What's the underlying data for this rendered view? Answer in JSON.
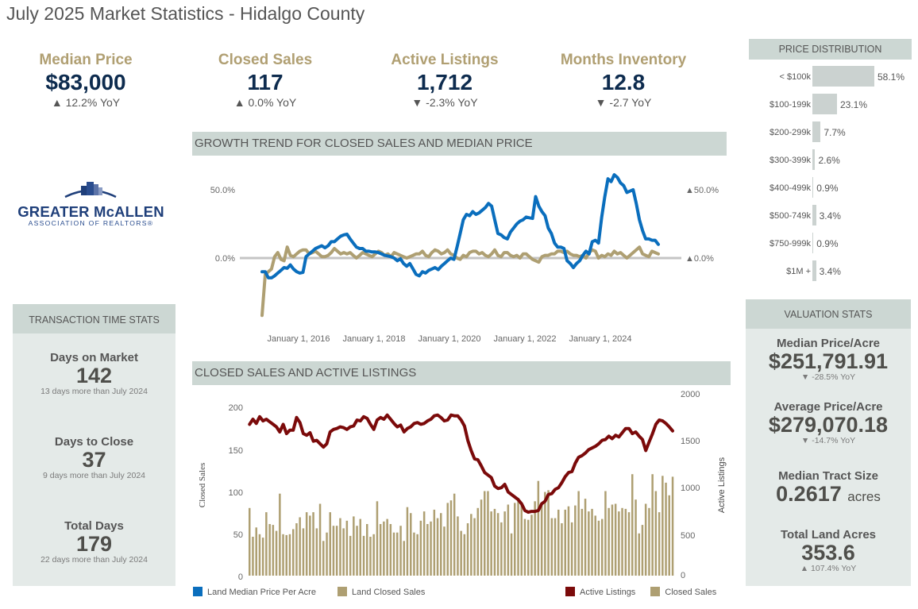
{
  "page": {
    "title": "July 2025 Market Statistics - Hidalgo County"
  },
  "kpis": [
    {
      "label": "Median Price",
      "value": "$83,000",
      "yoy": "▲ 12.2% YoY"
    },
    {
      "label": "Closed Sales",
      "value": "117",
      "yoy": "▲ 0.0% YoY"
    },
    {
      "label": "Active Listings",
      "value": "1,712",
      "yoy": "▼ -2.3% YoY"
    },
    {
      "label": "Months Inventory",
      "value": "12.8",
      "yoy": "▼ -2.7 YoY"
    }
  ],
  "logo": {
    "line1": "GREATER McALLEN",
    "line2": "ASSOCIATION OF REALTORS®"
  },
  "transaction_time": {
    "title": "TRANSACTION TIME STATS",
    "items": [
      {
        "label": "Days on Market",
        "value": "142",
        "note": "13 days more than July 2024"
      },
      {
        "label": "Days to Close",
        "value": "37",
        "note": "9 days more than July 2024"
      },
      {
        "label": "Total Days",
        "value": "179",
        "note": "22 days more than July 2024"
      }
    ]
  },
  "valuation": {
    "title": "VALUATION STATS",
    "median_price_acre": {
      "label": "Median Price/Acre",
      "value": "$251,791.91",
      "yoy": "▼ -28.5% YoY"
    },
    "average_price_acre": {
      "label": "Average Price/Acre",
      "value": "$279,070.18",
      "yoy": "▼ -14.7% YoY"
    },
    "median_tract": {
      "label": "Median Tract Size",
      "value": "0.2617",
      "unit": "acres"
    },
    "total_acres": {
      "label": "Total Land Acres",
      "value": "353.6",
      "yoy": "▲ 107.4% YoY"
    }
  },
  "colors": {
    "gold": "#b09f72",
    "navy": "#0d2b4e",
    "blue": "#0a6ebd",
    "tan": "#ae9f72",
    "maroon": "#7b0a0a",
    "header_bg": "#ccd7d3",
    "panel_bg": "#e4eae8",
    "bar_gray": "#cbd2d0"
  },
  "chart_data": [
    {
      "type": "bar",
      "title": "PRICE DISTRIBUTION",
      "orientation": "horizontal",
      "categories": [
        "< $100k",
        "$100-199k",
        "$200-299k",
        "$300-399k",
        "$400-499k",
        "$500-749k",
        "$750-999k",
        "$1M +"
      ],
      "values": [
        58.1,
        23.1,
        7.7,
        2.6,
        0.9,
        3.4,
        0.9,
        3.4
      ],
      "labels": [
        "58.1%",
        "23.1%",
        "7.7%",
        "2.6%",
        "0.9%",
        "3.4%",
        "0.9%",
        "3.4%"
      ],
      "unit": "%"
    },
    {
      "type": "line",
      "title": "GROWTH TREND FOR CLOSED SALES AND MEDIAN PRICE",
      "x_start": "2015-01",
      "x_step": "month",
      "x_ticks": [
        "January 1, 2016",
        "January 1, 2018",
        "January 1, 2020",
        "January 1, 2022",
        "January 1, 2024"
      ],
      "y_ticks_left": [
        "50.0%",
        "0.0%"
      ],
      "y_ticks_right": [
        "▲50.0%",
        "▲0.0%"
      ],
      "ylim": [
        -45,
        70
      ],
      "grid": false,
      "series": [
        {
          "name": "Land Median Price Per Acre",
          "color": "#0a6ebd",
          "values": [
            -10,
            -10,
            -14.5,
            -14.5,
            -13,
            -11,
            -9,
            -7,
            -7.5,
            -5,
            -8,
            -10,
            -11,
            -10.5,
            1,
            3,
            5,
            7,
            8,
            9,
            7.5,
            9,
            12,
            12,
            14,
            16,
            17,
            17.5,
            14,
            11,
            8,
            7,
            7,
            5,
            5,
            4.5,
            4.5,
            4,
            3,
            2,
            1.5,
            1,
            0,
            -2,
            -0.5,
            -4,
            -6,
            -4,
            -8,
            -12,
            -13,
            -10,
            -11,
            -9,
            -8,
            -7,
            -8.5,
            -6,
            -4,
            -2,
            0,
            -1,
            8,
            18,
            28,
            32,
            31,
            34,
            32,
            33,
            35,
            37,
            40,
            38,
            28,
            18,
            17,
            15,
            14,
            19,
            22,
            25,
            27,
            28,
            30,
            29.5,
            29,
            45,
            38,
            34,
            31,
            22,
            18,
            11,
            8,
            8,
            7,
            -2,
            -4,
            -7,
            -4,
            -2,
            2,
            5,
            3,
            12,
            13,
            11,
            30,
            45,
            58,
            56,
            61,
            59,
            55,
            53,
            48,
            49,
            50,
            40,
            28,
            20,
            14,
            14,
            13,
            13,
            10
          ]
        },
        {
          "name": "Land Closed Sales",
          "color": "#ae9f72",
          "values": [
            -42,
            -12,
            -10,
            -8,
            1,
            4,
            -1,
            -2,
            8,
            2,
            1,
            3,
            5,
            6,
            6,
            3,
            4,
            5,
            3,
            1,
            1,
            2,
            4,
            7,
            5,
            3,
            4,
            3,
            4,
            2,
            0,
            2,
            4,
            3,
            2,
            1,
            3,
            5,
            4,
            2,
            3,
            1,
            4,
            3,
            2,
            1,
            0,
            1,
            2,
            3,
            3,
            5,
            2,
            1,
            4,
            6,
            5,
            3,
            4,
            6,
            3,
            2,
            0,
            -1,
            2,
            1,
            4,
            5,
            5,
            3,
            4,
            2,
            1,
            3,
            6,
            2,
            1,
            4,
            4,
            2,
            1,
            2,
            0,
            3,
            3,
            1,
            -1,
            -2,
            -3,
            1,
            2,
            2,
            3,
            3,
            5,
            5,
            4,
            5,
            3,
            2,
            2,
            1,
            2,
            0,
            4,
            6,
            5,
            0,
            2,
            1,
            3,
            2,
            5,
            3,
            4,
            2,
            0,
            2,
            4,
            6,
            8,
            3,
            2,
            1,
            5,
            4,
            3
          ]
        }
      ]
    },
    {
      "type": "bar",
      "title": "CLOSED SALES AND ACTIVE LISTINGS",
      "ylabel": "Closed Sales",
      "ylabel_right": "Active Listings",
      "y_ticks_left": [
        "200",
        "150",
        "100",
        "50",
        "0"
      ],
      "y_ticks_right": [
        "2000",
        "1500",
        "1000",
        "500",
        "0"
      ],
      "ylim": [
        0,
        210
      ],
      "ylim_right": [
        0,
        2100
      ],
      "series": [
        {
          "name": "Closed Sales",
          "color": "#ae9f72",
          "axis": "left",
          "values": [
            80,
            46,
            57,
            49,
            45,
            75,
            61,
            60,
            53,
            97,
            49,
            48,
            49,
            55,
            62,
            69,
            56,
            75,
            71,
            75,
            56,
            85,
            41,
            51,
            75,
            59,
            59,
            68,
            56,
            65,
            47,
            70,
            59,
            67,
            47,
            61,
            46,
            49,
            88,
            61,
            64,
            67,
            61,
            51,
            51,
            59,
            41,
            81,
            74,
            51,
            49,
            65,
            76,
            61,
            64,
            78,
            68,
            74,
            58,
            86,
            89,
            97,
            70,
            53,
            49,
            62,
            73,
            68,
            80,
            90,
            100,
            100,
            76,
            79,
            74,
            63,
            76,
            84,
            50,
            86,
            92,
            84,
            67,
            66,
            72,
            88,
            112,
            85,
            99,
            101,
            68,
            68,
            78,
            62,
            78,
            82,
            63,
            83,
            100,
            79,
            91,
            76,
            79,
            71,
            65,
            67,
            100,
            80,
            84,
            85,
            76,
            80,
            79,
            75,
            120,
            90,
            50,
            60,
            85,
            80,
            120,
            100,
            75,
            118,
            110,
            95,
            117
          ]
        },
        {
          "name": "Active Listings",
          "color": "#7b0a0a",
          "axis": "right",
          "values": [
            1790,
            1850,
            1800,
            1880,
            1830,
            1850,
            1820,
            1790,
            1760,
            1700,
            1790,
            1680,
            1720,
            1720,
            1870,
            1810,
            1680,
            1660,
            1690,
            1590,
            1600,
            1560,
            1520,
            1560,
            1700,
            1730,
            1740,
            1760,
            1750,
            1730,
            1760,
            1770,
            1840,
            1830,
            1880,
            1860,
            1790,
            1730,
            1840,
            1870,
            1850,
            1900,
            1850,
            1800,
            1760,
            1780,
            1700,
            1740,
            1760,
            1800,
            1810,
            1790,
            1800,
            1830,
            1850,
            1890,
            1900,
            1870,
            1830,
            1840,
            1900,
            1890,
            1890,
            1840,
            1770,
            1600,
            1480,
            1380,
            1370,
            1300,
            1220,
            1190,
            1160,
            1060,
            1030,
            1040,
            1080,
            990,
            960,
            930,
            900,
            850,
            770,
            750,
            760,
            760,
            770,
            850,
            880,
            960,
            970,
            1020,
            1040,
            1100,
            1170,
            1220,
            1230,
            1330,
            1400,
            1420,
            1450,
            1490,
            1510,
            1530,
            1560,
            1600,
            1610,
            1650,
            1620,
            1660,
            1640,
            1690,
            1740,
            1740,
            1680,
            1700,
            1650,
            1610,
            1480,
            1580,
            1680,
            1790,
            1840,
            1830,
            1800,
            1760,
            1712
          ]
        }
      ]
    }
  ],
  "legend": {
    "left": [
      {
        "label": "Land Median Price Per Acre",
        "color": "#0a6ebd"
      },
      {
        "label": "Land Closed Sales",
        "color": "#ae9f72"
      }
    ],
    "right": [
      {
        "label": "Active Listings",
        "color": "#7b0a0a"
      },
      {
        "label": "Closed Sales",
        "color": "#ae9f72"
      }
    ]
  }
}
